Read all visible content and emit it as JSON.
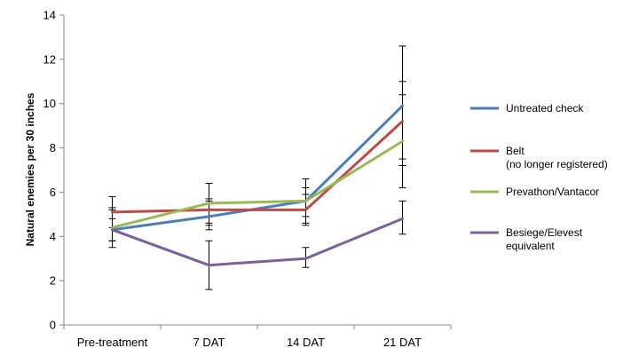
{
  "chart_data": {
    "type": "line",
    "title": "",
    "xlabel": "",
    "ylabel": "Natural enemies per 30 inches",
    "categories": [
      "Pre-treatment",
      "7 DAT",
      "14 DAT",
      "21 DAT"
    ],
    "ylim": [
      0,
      14
    ],
    "yticks": [
      0,
      2,
      4,
      6,
      8,
      10,
      12,
      14
    ],
    "grid": false,
    "legend_position": "right",
    "series": [
      {
        "name": "Untreated check",
        "color": "#4a7ebb",
        "values": [
          4.3,
          4.9,
          5.6,
          9.9
        ],
        "error_low": [
          3.8,
          4.3,
          4.6,
          7.2
        ],
        "error_high": [
          5.2,
          5.6,
          6.6,
          12.6
        ]
      },
      {
        "name": "Belt (no longer registered)",
        "color": "#be4b48",
        "values": [
          5.1,
          5.2,
          5.2,
          9.2
        ],
        "error_low": [
          4.4,
          4.5,
          4.5,
          7.5
        ],
        "error_high": [
          5.8,
          5.7,
          5.9,
          11.0
        ]
      },
      {
        "name": "Prevathon/Vantacor",
        "color": "#98b954",
        "values": [
          4.4,
          5.5,
          5.6,
          8.3
        ],
        "error_low": [
          3.5,
          4.6,
          4.9,
          6.2
        ],
        "error_high": [
          5.3,
          6.4,
          6.2,
          10.4
        ]
      },
      {
        "name": "Besiege/Elevest equivalent",
        "color": "#7d5fa0",
        "values": [
          4.3,
          2.7,
          3.0,
          4.8
        ],
        "error_low": [
          3.8,
          1.6,
          2.6,
          4.1
        ],
        "error_high": [
          4.8,
          3.8,
          3.5,
          5.6
        ]
      }
    ]
  }
}
